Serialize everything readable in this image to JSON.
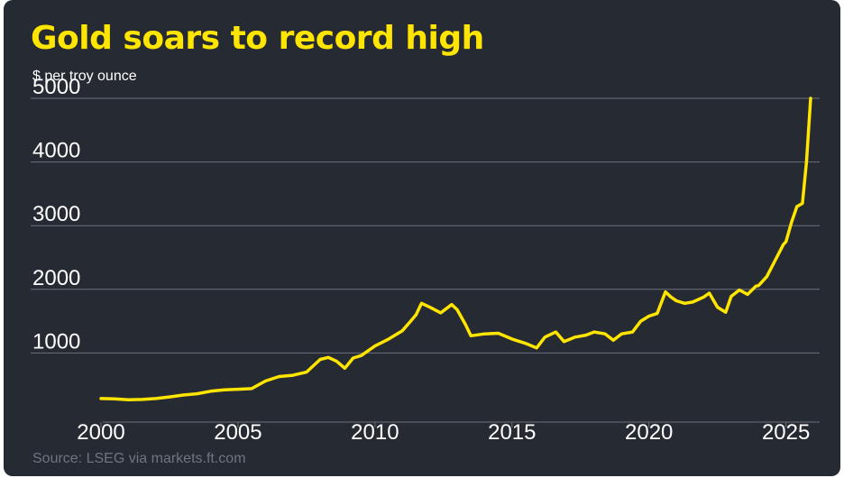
{
  "chart_data": {
    "type": "line",
    "title": "Gold soars to record high",
    "subtitle": "$ per troy ounce",
    "source": "Source: LSEG via markets.ft.com",
    "xlim": [
      2000,
      2025.9
    ],
    "ylim": [
      0,
      5000
    ],
    "y_ticks": [
      1000,
      2000,
      3000,
      4000,
      5000
    ],
    "x_ticks": [
      2000,
      2005,
      2010,
      2015,
      2020,
      2025
    ],
    "grid": true,
    "colors": {
      "background": "#262a33",
      "line": "#ffe500",
      "title": "#ffe500",
      "grid": "#6b707c",
      "source": "#6f7480"
    },
    "series": [
      {
        "name": "",
        "x": [
          2000.0,
          2000.5,
          2001.0,
          2001.5,
          2002.0,
          2002.5,
          2003.0,
          2003.5,
          2004.0,
          2004.5,
          2005.0,
          2005.5,
          2006.0,
          2006.5,
          2007.0,
          2007.5,
          2008.0,
          2008.3,
          2008.6,
          2008.9,
          2009.2,
          2009.5,
          2010.0,
          2010.5,
          2011.0,
          2011.3,
          2011.5,
          2011.7,
          2012.0,
          2012.4,
          2012.8,
          2013.0,
          2013.3,
          2013.5,
          2014.0,
          2014.5,
          2015.0,
          2015.5,
          2015.9,
          2016.2,
          2016.6,
          2016.9,
          2017.3,
          2017.7,
          2018.0,
          2018.4,
          2018.7,
          2019.0,
          2019.4,
          2019.7,
          2020.0,
          2020.3,
          2020.6,
          2020.8,
          2021.0,
          2021.3,
          2021.6,
          2022.0,
          2022.2,
          2022.5,
          2022.8,
          2023.0,
          2023.3,
          2023.6,
          2023.9,
          2024.0,
          2024.3,
          2024.6,
          2024.9,
          2025.0,
          2025.2,
          2025.4,
          2025.6,
          2025.75,
          2025.9
        ],
        "values": [
          285,
          280,
          265,
          270,
          285,
          310,
          340,
          360,
          400,
          420,
          430,
          440,
          560,
          630,
          650,
          700,
          900,
          930,
          870,
          760,
          920,
          960,
          1110,
          1220,
          1350,
          1500,
          1600,
          1780,
          1720,
          1630,
          1760,
          1680,
          1450,
          1270,
          1300,
          1310,
          1220,
          1150,
          1080,
          1250,
          1330,
          1180,
          1250,
          1280,
          1330,
          1300,
          1200,
          1300,
          1330,
          1500,
          1580,
          1620,
          1960,
          1880,
          1820,
          1780,
          1800,
          1880,
          1940,
          1720,
          1640,
          1890,
          1990,
          1920,
          2050,
          2060,
          2200,
          2450,
          2700,
          2750,
          3050,
          3300,
          3350,
          4000,
          5000
        ]
      }
    ]
  }
}
